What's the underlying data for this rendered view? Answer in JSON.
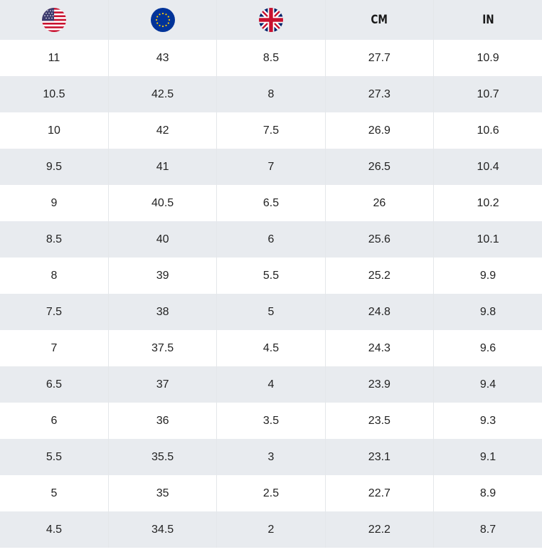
{
  "table": {
    "headers": [
      {
        "type": "flag",
        "icon": "us-flag-icon"
      },
      {
        "type": "flag",
        "icon": "eu-flag-icon"
      },
      {
        "type": "flag",
        "icon": "uk-flag-icon"
      },
      {
        "type": "text",
        "label": "CM"
      },
      {
        "type": "text",
        "label": "IN"
      }
    ],
    "rows": [
      [
        "11",
        "43",
        "8.5",
        "27.7",
        "10.9"
      ],
      [
        "10.5",
        "42.5",
        "8",
        "27.3",
        "10.7"
      ],
      [
        "10",
        "42",
        "7.5",
        "26.9",
        "10.6"
      ],
      [
        "9.5",
        "41",
        "7",
        "26.5",
        "10.4"
      ],
      [
        "9",
        "40.5",
        "6.5",
        "26",
        "10.2"
      ],
      [
        "8.5",
        "40",
        "6",
        "25.6",
        "10.1"
      ],
      [
        "8",
        "39",
        "5.5",
        "25.2",
        "9.9"
      ],
      [
        "7.5",
        "38",
        "5",
        "24.8",
        "9.8"
      ],
      [
        "7",
        "37.5",
        "4.5",
        "24.3",
        "9.6"
      ],
      [
        "6.5",
        "37",
        "4",
        "23.9",
        "9.4"
      ],
      [
        "6",
        "36",
        "3.5",
        "23.5",
        "9.3"
      ],
      [
        "5.5",
        "35.5",
        "3",
        "23.1",
        "9.1"
      ],
      [
        "5",
        "35",
        "2.5",
        "22.7",
        "8.9"
      ],
      [
        "4.5",
        "34.5",
        "2",
        "22.2",
        "8.7"
      ]
    ]
  },
  "colors": {
    "header_bg": "#e8ebef",
    "stripe_bg": "#e8ebef",
    "row_bg": "#ffffff",
    "text": "#222222"
  }
}
